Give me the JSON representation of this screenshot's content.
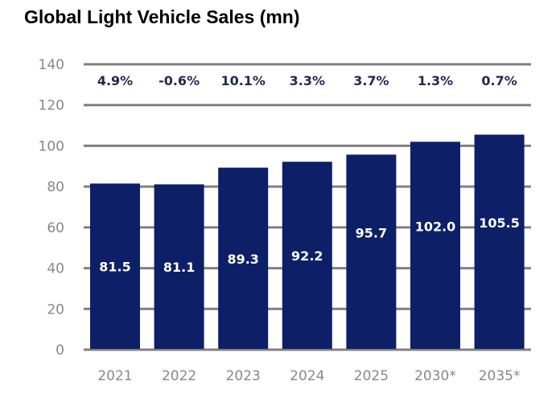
{
  "chart_data": {
    "type": "bar",
    "title": "Global Light Vehicle Sales (mn)",
    "categories": [
      "2021",
      "2022",
      "2023",
      "2024",
      "2025",
      "2030*",
      "2035*"
    ],
    "values": [
      81.5,
      81.1,
      89.3,
      92.2,
      95.7,
      102.0,
      105.5
    ],
    "value_labels": [
      "81.5",
      "81.1",
      "89.3",
      "92.2",
      "95.7",
      "102.0",
      "105.5"
    ],
    "growth_labels": [
      "4.9%",
      "-0.6%",
      "10.1%",
      "3.3%",
      "3.7%",
      "1.3%",
      "0.7%"
    ],
    "ylim": [
      0,
      140
    ],
    "yticks": [
      0,
      20,
      40,
      60,
      80,
      100,
      120,
      140
    ],
    "grid": true,
    "xlabel": "",
    "ylabel": "",
    "colors": {
      "bar": "#0d1f66",
      "grid": "#808080",
      "growth_text": "#1f2a4f",
      "tick_text": "#888888"
    }
  }
}
